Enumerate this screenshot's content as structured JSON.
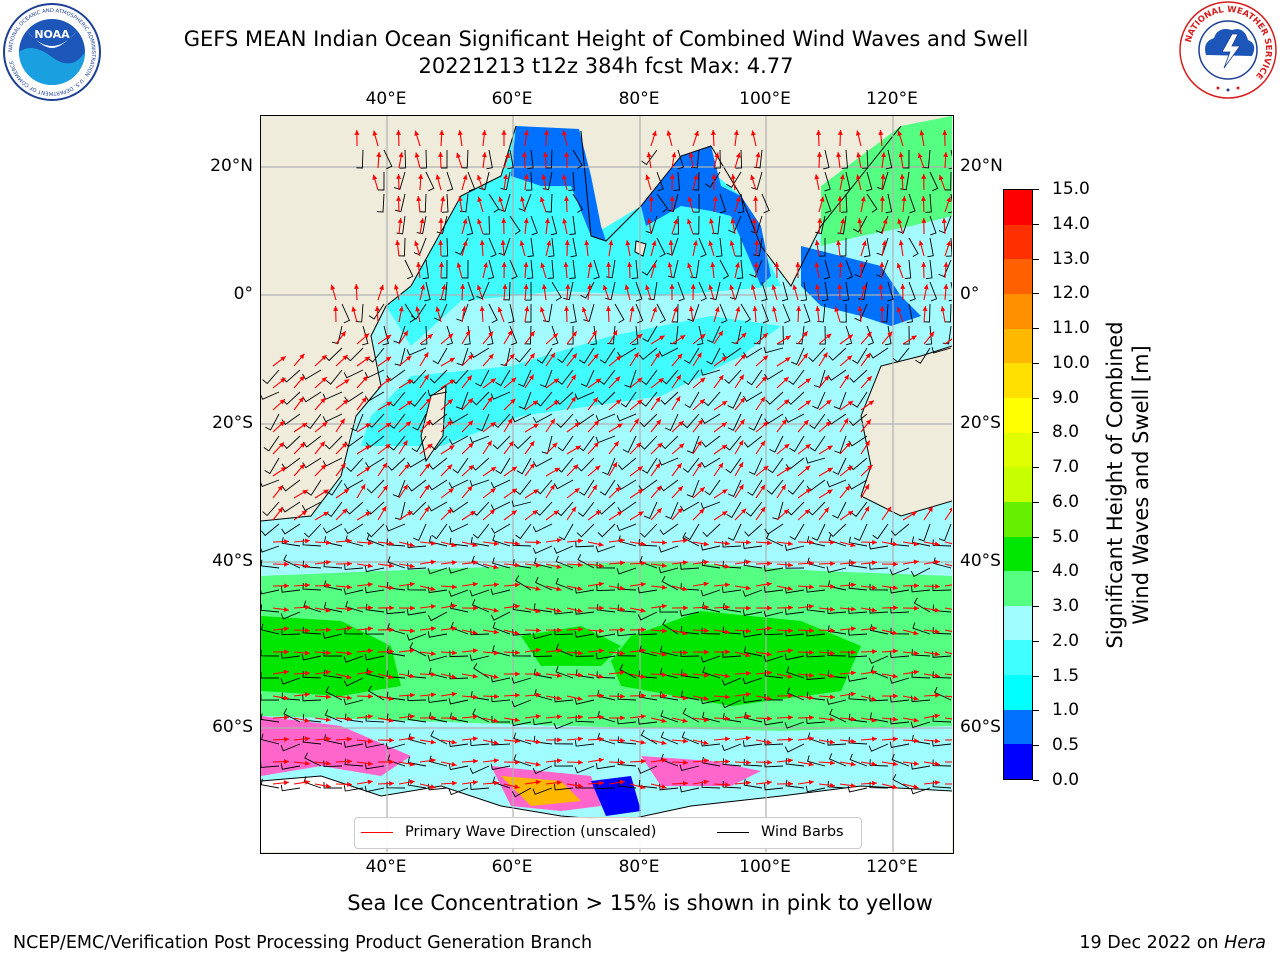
{
  "header": {
    "title_line1": "GEFS MEAN Indian Ocean Significant Height of Combined Wind Waves and Swell",
    "title_line2": "20221213 t12z 384h fcst   Max: 4.77",
    "noaa_logo_text": "NOAA",
    "noaa_ring_text": "NATIONAL OCEANIC AND ATMOSPHERIC ADMINISTRATION · U.S. DEPARTMENT OF COMMERCE",
    "nws_ring_text": "NATIONAL WEATHER SERVICE"
  },
  "map": {
    "lon_ticks": [
      "40°E",
      "60°E",
      "80°E",
      "100°E",
      "120°E"
    ],
    "lat_ticks_left": [
      "20°N",
      "0°",
      "20°S",
      "40°S",
      "60°S"
    ],
    "lat_ticks_right": [
      "20°N",
      "0°",
      "20°S",
      "40°S",
      "60°S"
    ],
    "land_color": "#efecdc",
    "gridlines": true
  },
  "colorbar": {
    "label_line1": "Significant Height of Combined",
    "label_line2": "Wind Waves and Swell [m]",
    "ticks": [
      "0.0",
      "0.5",
      "1.0",
      "1.5",
      "2.0",
      "3.0",
      "4.0",
      "5.0",
      "6.0",
      "7.0",
      "8.0",
      "9.0",
      "10.0",
      "11.0",
      "12.0",
      "13.0",
      "14.0",
      "15.0"
    ],
    "colors": [
      "#0000ff",
      "#0070ff",
      "#00ffff",
      "#40ffff",
      "#9ffcff",
      "#55ff82",
      "#00e600",
      "#66f000",
      "#c8ff00",
      "#e0ff00",
      "#ffff00",
      "#ffe000",
      "#ffb800",
      "#ff9000",
      "#ff6000",
      "#ff3000",
      "#ff0000"
    ]
  },
  "legend": {
    "wave_direction_label": "Primary Wave Direction (unscaled)",
    "wave_direction_color": "#ff0000",
    "wind_barbs_label": "Wind Barbs",
    "wind_barbs_color": "#000000"
  },
  "footer": {
    "ice_note": "Sea Ice Concentration > 15% is shown in pink to yellow",
    "credit": "NCEP/EMC/Verification Post Processing Product Generation Branch",
    "date_prefix": "19 Dec 2022 on ",
    "host": "Hera"
  }
}
